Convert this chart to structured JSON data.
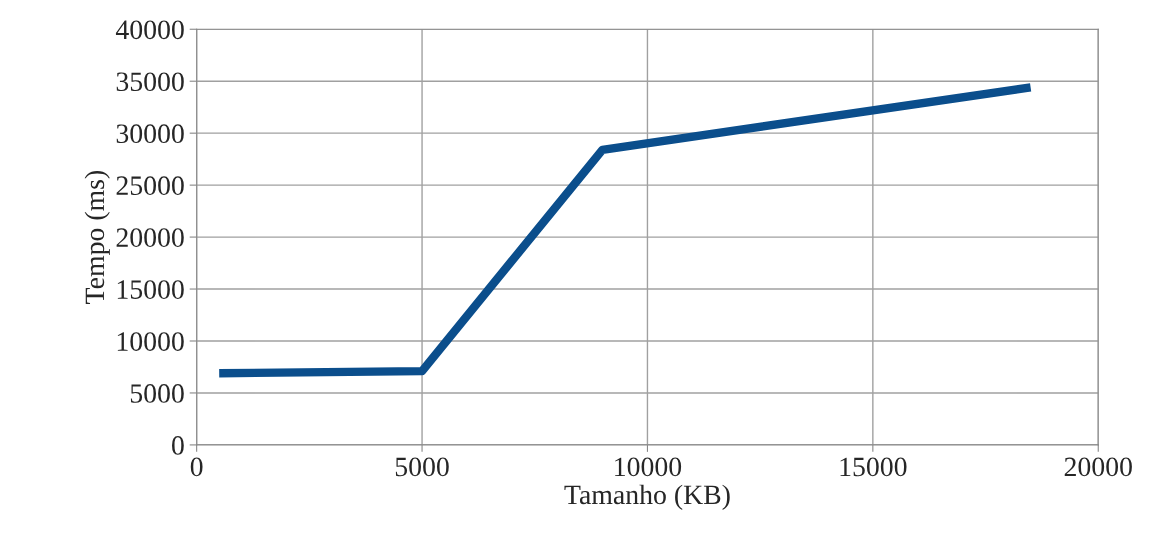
{
  "chart_data": {
    "type": "line",
    "xlabel": "Tamanho (KB)",
    "ylabel": "Tempo (ms)",
    "x": [
      500,
      5000,
      9000,
      18500
    ],
    "series": [
      {
        "color": "#0b4e8c",
        "values": [
          6900,
          7100,
          28400,
          34400
        ]
      }
    ],
    "xlim": [
      0,
      20000
    ],
    "xticks": [
      0,
      5000,
      10000,
      15000,
      20000
    ],
    "ylim": [
      0,
      40000
    ],
    "yticks": [
      0,
      5000,
      10000,
      15000,
      20000,
      25000,
      30000,
      35000,
      40000
    ],
    "grid": true,
    "marker": "none",
    "line_style": "solid"
  }
}
